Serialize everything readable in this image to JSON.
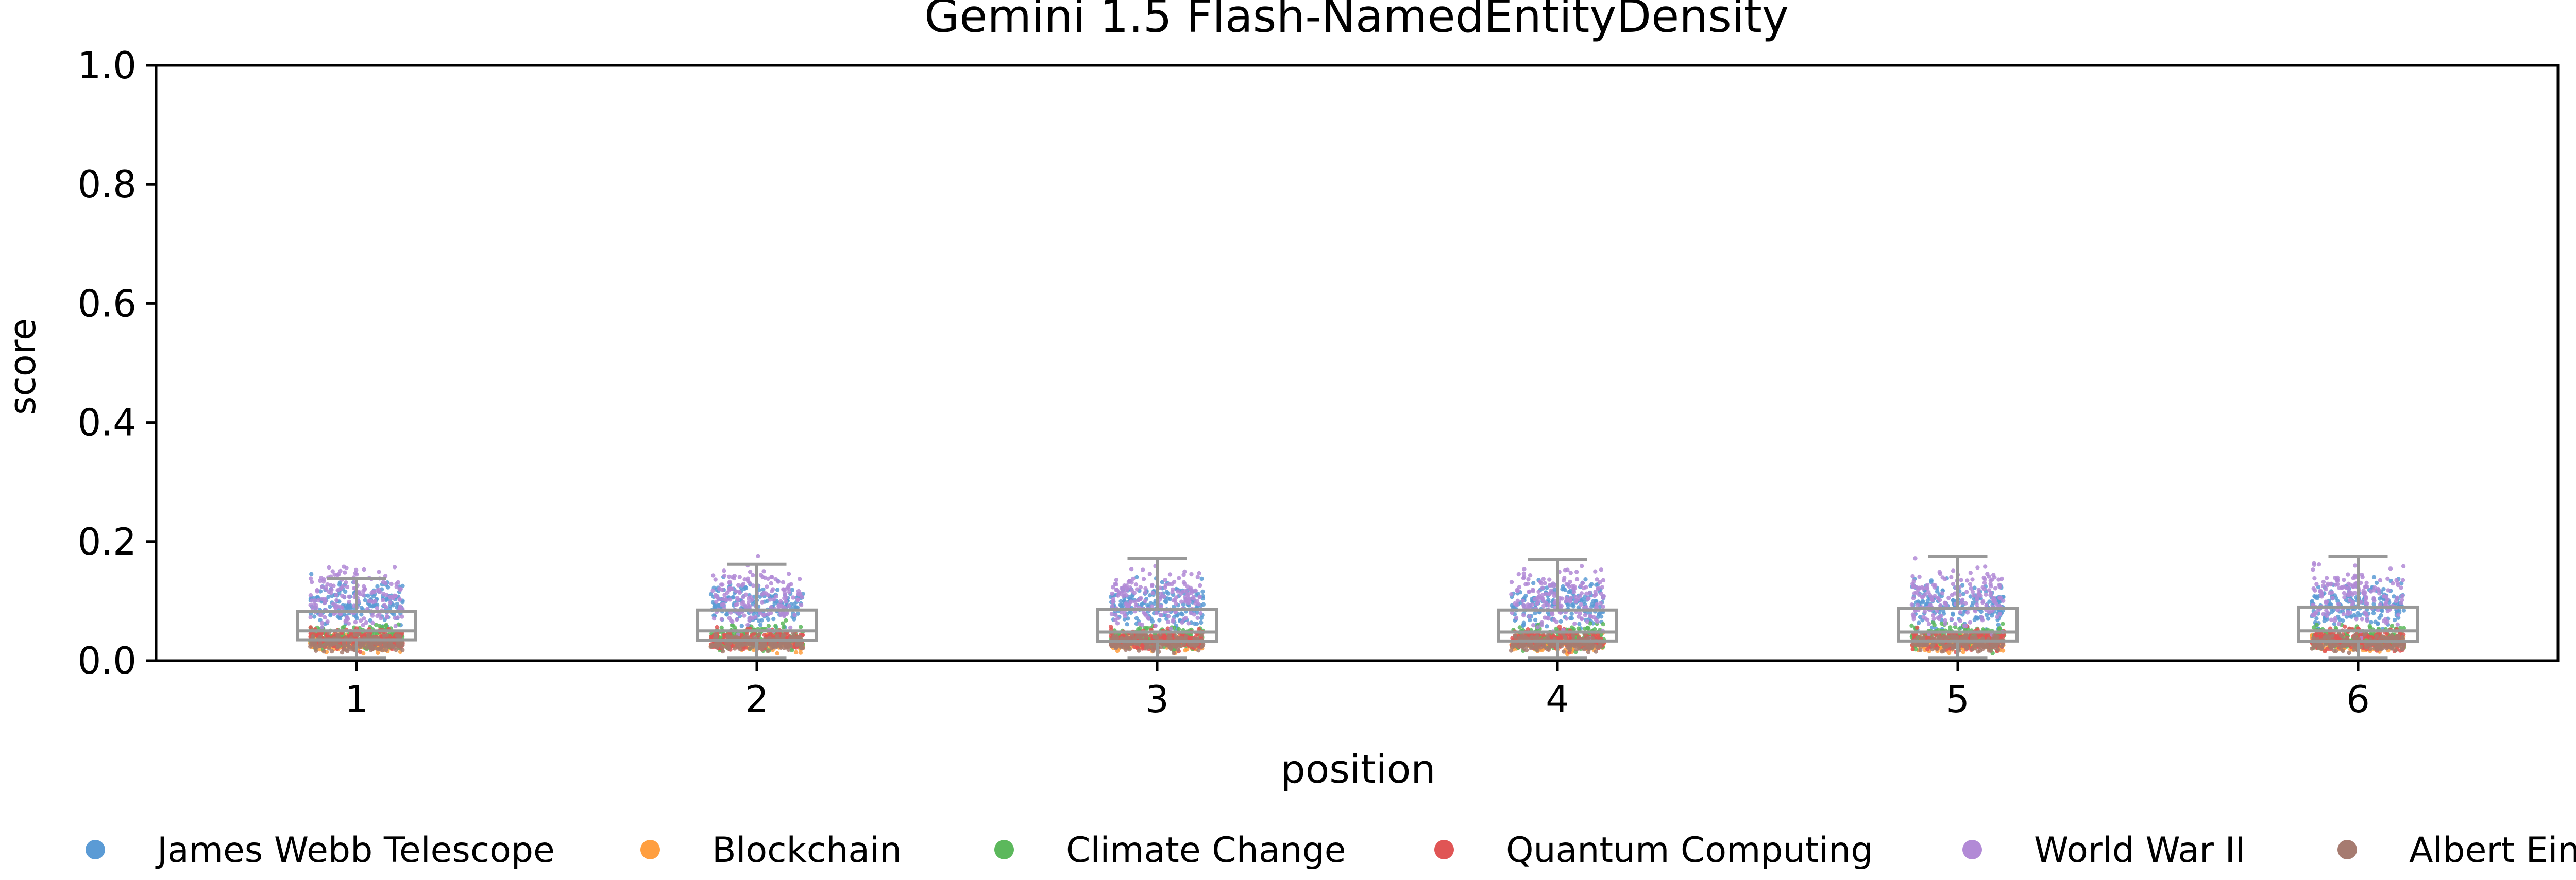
{
  "chart_data": {
    "type": "box+strip",
    "title": "Gemini 1.5 Flash-NamedEntityDensity",
    "xlabel": "position",
    "ylabel": "score",
    "ylim": [
      0.0,
      1.0
    ],
    "yticks": [
      "0.0",
      "0.2",
      "0.4",
      "0.6",
      "0.8",
      "1.0"
    ],
    "categories": [
      "1",
      "2",
      "3",
      "4",
      "5",
      "6"
    ],
    "legend_position": "bottom",
    "grid": false,
    "box_color": "#999999",
    "boxes": [
      {
        "position": "1",
        "whisker_low": 0.005,
        "q1": 0.035,
        "median": 0.05,
        "q3": 0.083,
        "whisker_high": 0.138
      },
      {
        "position": "2",
        "whisker_low": 0.005,
        "q1": 0.034,
        "median": 0.05,
        "q3": 0.085,
        "whisker_high": 0.162
      },
      {
        "position": "3",
        "whisker_low": 0.005,
        "q1": 0.032,
        "median": 0.048,
        "q3": 0.086,
        "whisker_high": 0.172
      },
      {
        "position": "4",
        "whisker_low": 0.005,
        "q1": 0.033,
        "median": 0.048,
        "q3": 0.085,
        "whisker_high": 0.17
      },
      {
        "position": "5",
        "whisker_low": 0.005,
        "q1": 0.033,
        "median": 0.048,
        "q3": 0.088,
        "whisker_high": 0.175
      },
      {
        "position": "6",
        "whisker_low": 0.005,
        "q1": 0.032,
        "median": 0.05,
        "q3": 0.09,
        "whisker_high": 0.175
      }
    ],
    "series": [
      {
        "name": "James Webb Telescope",
        "color": "#5b9bd5",
        "range": [
          0.04,
          0.15
        ]
      },
      {
        "name": "Blockchain",
        "color": "#ff9f40",
        "range": [
          0.01,
          0.05
        ]
      },
      {
        "name": "Climate Change",
        "color": "#5cb85c",
        "range": [
          0.01,
          0.07
        ]
      },
      {
        "name": "Quantum Computing",
        "color": "#e05555",
        "range": [
          0.01,
          0.06
        ]
      },
      {
        "name": "World War II",
        "color": "#b28ad6",
        "range": [
          0.03,
          0.18
        ]
      },
      {
        "name": "Albert Einstein",
        "color": "#a67b70",
        "range": [
          0.01,
          0.05
        ]
      }
    ]
  }
}
